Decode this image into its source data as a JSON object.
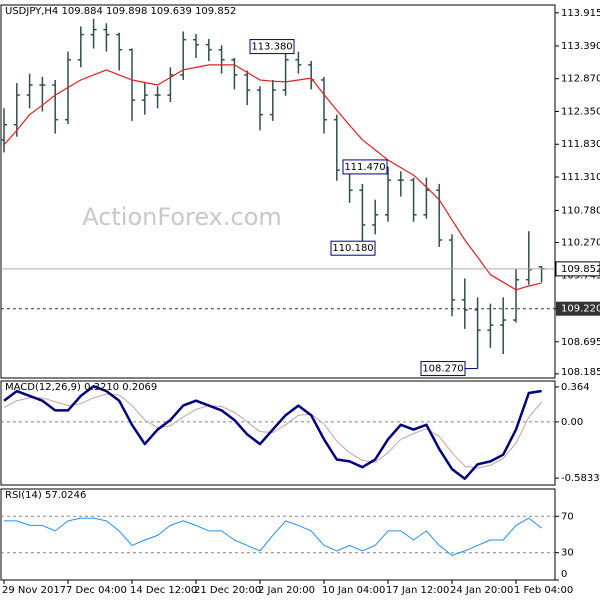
{
  "chart_data": [
    {
      "type": "ohlc",
      "title": "USDJPY,H4 109.884 109.898 109.639 109.852",
      "watermark": "ActionForex.com",
      "categories": [
        "29 Nov 2017",
        null,
        null,
        null,
        null,
        "7 Dec 04:00",
        null,
        null,
        null,
        null,
        "14 Dec 12:00",
        null,
        null,
        null,
        null,
        "21 Dec 20:00",
        null,
        null,
        null,
        null,
        "2 Jan 20:00",
        null,
        null,
        null,
        null,
        "10 Jan 04:00",
        null,
        null,
        null,
        null,
        "17 Jan 12:00",
        null,
        null,
        null,
        null,
        "24 Jan 20:00",
        null,
        null,
        null,
        null,
        "1 Feb 04:00",
        null,
        null
      ],
      "open": [
        111.9,
        112.14,
        112.61,
        112.77,
        112.77,
        112.22,
        113.17,
        113.57,
        113.65,
        113.57,
        113.33,
        112.53,
        112.61,
        112.61,
        112.93,
        113.49,
        113.41,
        113.33,
        113.17,
        112.93,
        112.69,
        112.3,
        112.69,
        113.17,
        113.09,
        112.85,
        112.22,
        111.42,
        111.1,
        110.55,
        110.71,
        111.26,
        111.26,
        110.71,
        111.1,
        110.31,
        109.36,
        109.2,
        108.88,
        108.96,
        109.04,
        109.68,
        109.884
      ],
      "high": [
        112.4,
        112.8,
        112.95,
        112.9,
        112.85,
        113.3,
        113.7,
        113.82,
        113.75,
        113.6,
        113.35,
        112.8,
        112.75,
        113.05,
        113.62,
        113.58,
        113.5,
        113.4,
        113.2,
        113.0,
        112.75,
        112.85,
        113.38,
        113.3,
        113.15,
        112.9,
        112.3,
        111.55,
        111.2,
        110.95,
        111.47,
        111.4,
        111.3,
        111.3,
        111.2,
        110.4,
        109.7,
        109.4,
        109.3,
        109.4,
        109.85,
        110.45,
        109.898
      ],
      "low": [
        111.7,
        111.95,
        112.4,
        112.35,
        112.0,
        112.15,
        113.05,
        113.35,
        113.3,
        113.0,
        112.2,
        112.3,
        112.4,
        112.5,
        112.85,
        113.2,
        113.15,
        112.95,
        112.7,
        112.45,
        112.05,
        112.2,
        112.6,
        112.95,
        112.7,
        112.0,
        111.25,
        110.9,
        110.18,
        110.4,
        110.6,
        111.0,
        110.6,
        110.65,
        110.2,
        109.1,
        108.9,
        108.27,
        108.6,
        108.5,
        109.0,
        109.6,
        109.639
      ],
      "close": [
        112.14,
        112.61,
        112.77,
        112.77,
        112.22,
        113.17,
        113.57,
        113.65,
        113.57,
        113.33,
        112.53,
        112.61,
        112.61,
        112.93,
        113.49,
        113.41,
        113.33,
        113.17,
        112.93,
        112.69,
        112.3,
        112.69,
        113.17,
        113.09,
        112.85,
        112.22,
        111.42,
        111.1,
        110.55,
        110.71,
        111.26,
        111.26,
        110.71,
        111.1,
        110.31,
        109.36,
        109.2,
        108.88,
        108.96,
        109.04,
        109.68,
        109.84,
        109.852
      ],
      "color": "#2f4f4f",
      "ma": {
        "color": "#e02020",
        "values": [
          111.82,
          112.05,
          112.3,
          112.45,
          112.61,
          112.73,
          112.85,
          112.93,
          113.01,
          112.93,
          112.85,
          112.81,
          112.77,
          112.89,
          113.01,
          113.05,
          113.09,
          113.09,
          113.09,
          112.97,
          112.85,
          112.83,
          112.82,
          112.85,
          112.88,
          112.62,
          112.37,
          112.13,
          111.9,
          111.74,
          111.58,
          111.46,
          111.34,
          111.15,
          110.95,
          110.63,
          110.31,
          110.04,
          109.76,
          109.64,
          109.52,
          109.58,
          109.63
        ]
      },
      "ylim": [
        108.12,
        114.04
      ],
      "yticks": [
        113.915,
        {
          "value": 113.39,
          "label": "113.390"
        },
        {
          "value": 112.87,
          "label": "112.870"
        },
        {
          "value": 112.35,
          "label": "112.350"
        },
        {
          "value": 111.83,
          "label": "111.830"
        },
        {
          "value": 111.31,
          "label": "111.310"
        },
        {
          "value": 110.78,
          "label": "110.780"
        },
        {
          "value": 110.27,
          "label": "110.270"
        },
        109.745,
        {
          "value": 109.22,
          "label": "109.220"
        },
        108.695,
        108.185
      ],
      "level": {
        "value": 109.22,
        "label": "109.220"
      },
      "current": 109.852,
      "annotations": [
        {
          "value": 113.38,
          "label": "113.380"
        },
        {
          "value": 111.47,
          "label": "111.470"
        },
        {
          "value": 110.18,
          "label": "110.180"
        },
        {
          "value": 108.27,
          "label": "108.270"
        }
      ]
    },
    {
      "type": "line",
      "title": "MACD(12,26,9) 0.3210 0.2069",
      "series": [
        {
          "color": "#000080",
          "values": [
            0.22,
            0.32,
            0.27,
            0.22,
            0.12,
            0.12,
            0.27,
            0.37,
            0.32,
            0.22,
            -0.03,
            -0.23,
            -0.08,
            0.02,
            0.17,
            0.22,
            0.17,
            0.12,
            0.02,
            -0.13,
            -0.23,
            -0.08,
            0.07,
            0.17,
            0.07,
            -0.18,
            -0.39,
            -0.41,
            -0.47,
            -0.39,
            -0.18,
            -0.03,
            -0.08,
            -0.03,
            -0.28,
            -0.49,
            -0.59,
            -0.44,
            -0.41,
            -0.34,
            -0.08,
            0.3,
            0.321
          ]
        },
        {
          "color": "#d0a0a0",
          "values": [
            0.15,
            0.22,
            0.25,
            0.25,
            0.21,
            0.17,
            0.19,
            0.25,
            0.29,
            0.28,
            0.17,
            0.02,
            -0.06,
            -0.04,
            0.05,
            0.13,
            0.17,
            0.16,
            0.1,
            0.0,
            -0.1,
            -0.11,
            -0.03,
            0.07,
            0.08,
            -0.02,
            -0.2,
            -0.32,
            -0.4,
            -0.42,
            -0.32,
            -0.18,
            -0.12,
            -0.07,
            -0.15,
            -0.32,
            -0.46,
            -0.48,
            -0.45,
            -0.38,
            -0.22,
            0.05,
            0.2069
          ]
        }
      ],
      "ylim": [
        -0.655,
        0.425
      ],
      "yticks": [
        0.364,
        {
          "value": 0,
          "label": "0.00"
        },
        -0.5833
      ],
      "levels": [
        0
      ]
    },
    {
      "type": "line",
      "title": "RSI(14) 57.0246",
      "series": [
        {
          "color": "#1e90ff",
          "values": [
            65,
            65,
            60,
            60,
            54,
            65,
            68,
            68,
            65,
            54,
            38,
            44,
            49,
            60,
            65,
            60,
            54,
            54,
            44,
            38,
            32,
            49,
            65,
            60,
            54,
            38,
            32,
            38,
            32,
            38,
            54,
            54,
            44,
            54,
            38,
            27,
            32,
            38,
            44,
            44,
            60,
            68,
            57.0246
          ]
        }
      ],
      "ylim": [
        0,
        100
      ],
      "yticks": [
        70,
        30,
        0
      ],
      "levels": [
        70,
        30
      ]
    }
  ]
}
